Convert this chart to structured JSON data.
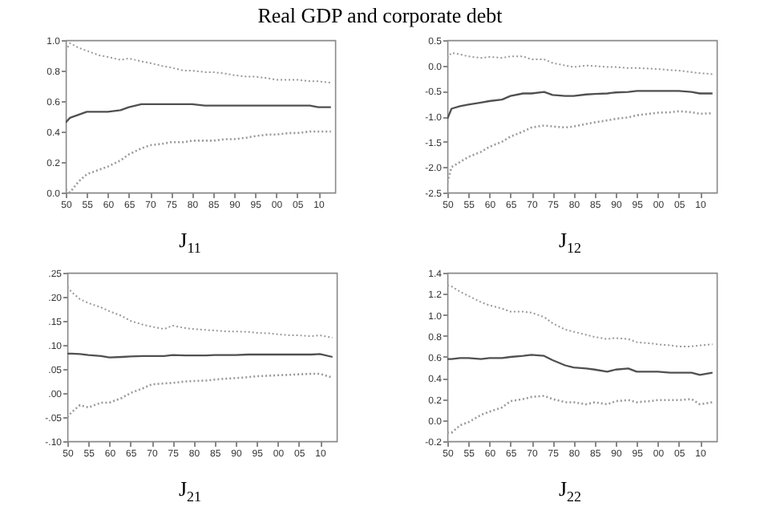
{
  "chart_data": [
    {
      "type": "line",
      "title": "Real GDP and corporate debt",
      "xlabel": "J$_{11}$",
      "x": [
        1950,
        1951,
        1953,
        1955,
        1958,
        1960,
        1963,
        1965,
        1968,
        1970,
        1973,
        1975,
        1978,
        1980,
        1983,
        1985,
        1988,
        1990,
        1993,
        1995,
        1998,
        2000,
        2003,
        2005,
        2008,
        2010,
        2013
      ],
      "xlim": [
        1950,
        2014
      ],
      "xticks": [
        {
          "value": 1950,
          "label": "50"
        },
        {
          "value": 1955,
          "label": "55"
        },
        {
          "value": 1960,
          "label": "60"
        },
        {
          "value": 1965,
          "label": "65"
        },
        {
          "value": 1970,
          "label": "70"
        },
        {
          "value": 1975,
          "label": "75"
        },
        {
          "value": 1980,
          "label": "80"
        },
        {
          "value": 1985,
          "label": "85"
        },
        {
          "value": 1990,
          "label": "90"
        },
        {
          "value": 1995,
          "label": "95"
        },
        {
          "value": 2000,
          "label": "00"
        },
        {
          "value": 2005,
          "label": "05"
        },
        {
          "value": 2010,
          "label": "10"
        }
      ],
      "ylim": [
        0,
        1
      ],
      "yticks": [
        {
          "value": 0,
          "label": "0.0"
        },
        0.2,
        0.4,
        0.6,
        0.8,
        {
          "value": 1,
          "label": "1.0"
        }
      ],
      "series": [
        {
          "color": "#9a9a9a",
          "line_style": "dotted",
          "values": [
            0.93,
            0.98,
            0.95,
            0.93,
            0.9,
            0.89,
            0.87,
            0.88,
            0.86,
            0.85,
            0.83,
            0.82,
            0.8,
            0.8,
            0.79,
            0.79,
            0.78,
            0.77,
            0.76,
            0.76,
            0.75,
            0.74,
            0.74,
            0.74,
            0.73,
            0.73,
            0.72
          ]
        },
        {
          "color": "#505050",
          "line_style": "solid",
          "values": [
            0.46,
            0.49,
            0.51,
            0.53,
            0.53,
            0.53,
            0.54,
            0.56,
            0.58,
            0.58,
            0.58,
            0.58,
            0.58,
            0.58,
            0.57,
            0.57,
            0.57,
            0.57,
            0.57,
            0.57,
            0.57,
            0.57,
            0.57,
            0.57,
            0.57,
            0.56,
            0.56
          ]
        },
        {
          "color": "#9a9a9a",
          "line_style": "dotted",
          "values": [
            0.02,
            0.0,
            0.07,
            0.12,
            0.15,
            0.17,
            0.21,
            0.25,
            0.29,
            0.31,
            0.32,
            0.33,
            0.33,
            0.34,
            0.34,
            0.34,
            0.35,
            0.35,
            0.36,
            0.37,
            0.38,
            0.38,
            0.39,
            0.39,
            0.4,
            0.4,
            0.4
          ]
        }
      ]
    },
    {
      "type": "line",
      "xlabel": "J$_{12}$",
      "x": [
        1950,
        1951,
        1953,
        1955,
        1958,
        1960,
        1963,
        1965,
        1968,
        1970,
        1973,
        1975,
        1978,
        1980,
        1983,
        1985,
        1988,
        1990,
        1993,
        1995,
        1998,
        2000,
        2003,
        2005,
        2008,
        2010,
        2013
      ],
      "xlim": [
        1950,
        2014
      ],
      "xticks": [
        {
          "value": 1950,
          "label": "50"
        },
        {
          "value": 1955,
          "label": "55"
        },
        {
          "value": 1960,
          "label": "60"
        },
        {
          "value": 1965,
          "label": "65"
        },
        {
          "value": 1970,
          "label": "70"
        },
        {
          "value": 1975,
          "label": "75"
        },
        {
          "value": 1980,
          "label": "80"
        },
        {
          "value": 1985,
          "label": "85"
        },
        {
          "value": 1990,
          "label": "90"
        },
        {
          "value": 1995,
          "label": "95"
        },
        {
          "value": 2000,
          "label": "00"
        },
        {
          "value": 2005,
          "label": "05"
        },
        {
          "value": 2010,
          "label": "10"
        }
      ],
      "ylim": [
        -2.5,
        0.5
      ],
      "yticks": [
        -2.5,
        {
          "value": -2,
          "label": "-2.0"
        },
        -1.5,
        {
          "value": -1,
          "label": "-1.0"
        },
        -0.5,
        {
          "value": 0,
          "label": "0.0"
        },
        0.5
      ],
      "series": [
        {
          "color": "#9a9a9a",
          "line_style": "dotted",
          "values": [
            0.15,
            0.25,
            0.22,
            0.18,
            0.15,
            0.17,
            0.15,
            0.18,
            0.18,
            0.12,
            0.12,
            0.05,
            0.0,
            -0.03,
            0.0,
            -0.01,
            -0.03,
            -0.03,
            -0.05,
            -0.05,
            -0.06,
            -0.07,
            -0.09,
            -0.1,
            -0.13,
            -0.15,
            -0.17
          ]
        },
        {
          "color": "#505050",
          "line_style": "solid",
          "values": [
            -1.05,
            -0.85,
            -0.8,
            -0.77,
            -0.73,
            -0.7,
            -0.67,
            -0.6,
            -0.55,
            -0.55,
            -0.52,
            -0.58,
            -0.6,
            -0.6,
            -0.57,
            -0.56,
            -0.55,
            -0.53,
            -0.52,
            -0.5,
            -0.5,
            -0.5,
            -0.5,
            -0.5,
            -0.52,
            -0.55,
            -0.55
          ]
        },
        {
          "color": "#9a9a9a",
          "line_style": "dotted",
          "values": [
            -2.3,
            -2.0,
            -1.9,
            -1.8,
            -1.7,
            -1.6,
            -1.5,
            -1.4,
            -1.3,
            -1.22,
            -1.18,
            -1.2,
            -1.22,
            -1.2,
            -1.15,
            -1.12,
            -1.08,
            -1.05,
            -1.02,
            -0.98,
            -0.95,
            -0.93,
            -0.92,
            -0.9,
            -0.92,
            -0.95,
            -0.94
          ]
        }
      ]
    },
    {
      "type": "line",
      "xlabel": "J$_{21}$",
      "x": [
        1950,
        1951,
        1953,
        1955,
        1958,
        1960,
        1963,
        1965,
        1968,
        1970,
        1973,
        1975,
        1978,
        1980,
        1983,
        1985,
        1988,
        1990,
        1993,
        1995,
        1998,
        2000,
        2003,
        2005,
        2008,
        2010,
        2013
      ],
      "xlim": [
        1950,
        2014
      ],
      "xticks": [
        {
          "value": 1950,
          "label": "50"
        },
        {
          "value": 1955,
          "label": "55"
        },
        {
          "value": 1960,
          "label": "60"
        },
        {
          "value": 1965,
          "label": "65"
        },
        {
          "value": 1970,
          "label": "70"
        },
        {
          "value": 1975,
          "label": "75"
        },
        {
          "value": 1980,
          "label": "80"
        },
        {
          "value": 1985,
          "label": "85"
        },
        {
          "value": 1990,
          "label": "90"
        },
        {
          "value": 1995,
          "label": "95"
        },
        {
          "value": 2000,
          "label": "00"
        },
        {
          "value": 2005,
          "label": "05"
        },
        {
          "value": 2010,
          "label": "10"
        }
      ],
      "ylim": [
        -0.1,
        0.25
      ],
      "yticks": [
        {
          "value": -0.1,
          "label": "-.10"
        },
        {
          "value": -0.05,
          "label": "-.05"
        },
        {
          "value": 0,
          "label": ".00"
        },
        {
          "value": 0.05,
          "label": ".05"
        },
        {
          "value": 0.1,
          "label": ".10"
        },
        {
          "value": 0.15,
          "label": ".15"
        },
        {
          "value": 0.2,
          "label": ".20"
        },
        {
          "value": 0.25,
          "label": ".25"
        }
      ],
      "series": [
        {
          "color": "#9a9a9a",
          "line_style": "dotted",
          "values": [
            0.22,
            0.21,
            0.195,
            0.187,
            0.178,
            0.17,
            0.16,
            0.15,
            0.142,
            0.138,
            0.133,
            0.14,
            0.135,
            0.133,
            0.131,
            0.13,
            0.128,
            0.128,
            0.127,
            0.125,
            0.124,
            0.122,
            0.12,
            0.12,
            0.118,
            0.12,
            0.115
          ]
        },
        {
          "color": "#505050",
          "line_style": "solid",
          "values": [
            0.082,
            0.082,
            0.081,
            0.079,
            0.077,
            0.074,
            0.075,
            0.076,
            0.077,
            0.077,
            0.077,
            0.079,
            0.078,
            0.078,
            0.078,
            0.079,
            0.079,
            0.079,
            0.08,
            0.08,
            0.08,
            0.08,
            0.08,
            0.08,
            0.08,
            0.081,
            0.075
          ]
        },
        {
          "color": "#9a9a9a",
          "line_style": "dotted",
          "values": [
            -0.05,
            -0.04,
            -0.025,
            -0.03,
            -0.02,
            -0.02,
            -0.01,
            0.0,
            0.01,
            0.018,
            0.02,
            0.021,
            0.024,
            0.025,
            0.026,
            0.028,
            0.03,
            0.031,
            0.033,
            0.035,
            0.036,
            0.037,
            0.038,
            0.039,
            0.04,
            0.04,
            0.032
          ]
        }
      ]
    },
    {
      "type": "line",
      "xlabel": "J$_{22}$",
      "x": [
        1950,
        1951,
        1953,
        1955,
        1958,
        1960,
        1963,
        1965,
        1968,
        1970,
        1973,
        1975,
        1978,
        1980,
        1983,
        1985,
        1988,
        1990,
        1993,
        1995,
        1998,
        2000,
        2003,
        2005,
        2008,
        2010,
        2013
      ],
      "xlim": [
        1950,
        2014
      ],
      "xticks": [
        {
          "value": 1950,
          "label": "50"
        },
        {
          "value": 1955,
          "label": "55"
        },
        {
          "value": 1960,
          "label": "60"
        },
        {
          "value": 1965,
          "label": "65"
        },
        {
          "value": 1970,
          "label": "70"
        },
        {
          "value": 1975,
          "label": "75"
        },
        {
          "value": 1980,
          "label": "80"
        },
        {
          "value": 1985,
          "label": "85"
        },
        {
          "value": 1990,
          "label": "90"
        },
        {
          "value": 1995,
          "label": "95"
        },
        {
          "value": 2000,
          "label": "00"
        },
        {
          "value": 2005,
          "label": "05"
        },
        {
          "value": 2010,
          "label": "10"
        }
      ],
      "ylim": [
        -0.2,
        1.4
      ],
      "yticks": [
        -0.2,
        {
          "value": 0,
          "label": "0.0"
        },
        0.2,
        0.4,
        0.6,
        0.8,
        {
          "value": 1,
          "label": "1.0"
        },
        1.2,
        1.4
      ],
      "series": [
        {
          "color": "#9a9a9a",
          "line_style": "dotted",
          "values": [
            1.28,
            1.27,
            1.22,
            1.18,
            1.12,
            1.09,
            1.06,
            1.03,
            1.03,
            1.02,
            0.98,
            0.92,
            0.86,
            0.84,
            0.81,
            0.79,
            0.77,
            0.78,
            0.77,
            0.74,
            0.73,
            0.72,
            0.71,
            0.7,
            0.7,
            0.71,
            0.72
          ]
        },
        {
          "color": "#505050",
          "line_style": "solid",
          "values": [
            0.58,
            0.58,
            0.59,
            0.59,
            0.58,
            0.59,
            0.59,
            0.6,
            0.61,
            0.62,
            0.61,
            0.57,
            0.52,
            0.5,
            0.49,
            0.48,
            0.46,
            0.48,
            0.49,
            0.46,
            0.46,
            0.46,
            0.45,
            0.45,
            0.45,
            0.43,
            0.45
          ]
        },
        {
          "color": "#9a9a9a",
          "line_style": "dotted",
          "values": [
            -0.12,
            -0.12,
            -0.05,
            -0.02,
            0.05,
            0.08,
            0.12,
            0.18,
            0.2,
            0.22,
            0.23,
            0.2,
            0.17,
            0.17,
            0.15,
            0.17,
            0.15,
            0.18,
            0.19,
            0.17,
            0.18,
            0.19,
            0.19,
            0.19,
            0.2,
            0.15,
            0.17
          ]
        }
      ]
    }
  ]
}
